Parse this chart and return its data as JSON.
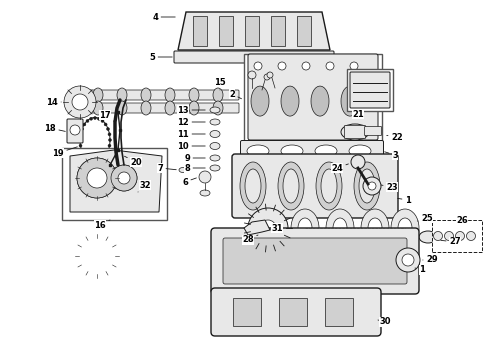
{
  "background_color": "#ffffff",
  "line_color": "#1a1a1a",
  "figsize": [
    4.9,
    3.6
  ],
  "dpi": 100,
  "fs": 6.0,
  "fw": "bold"
}
